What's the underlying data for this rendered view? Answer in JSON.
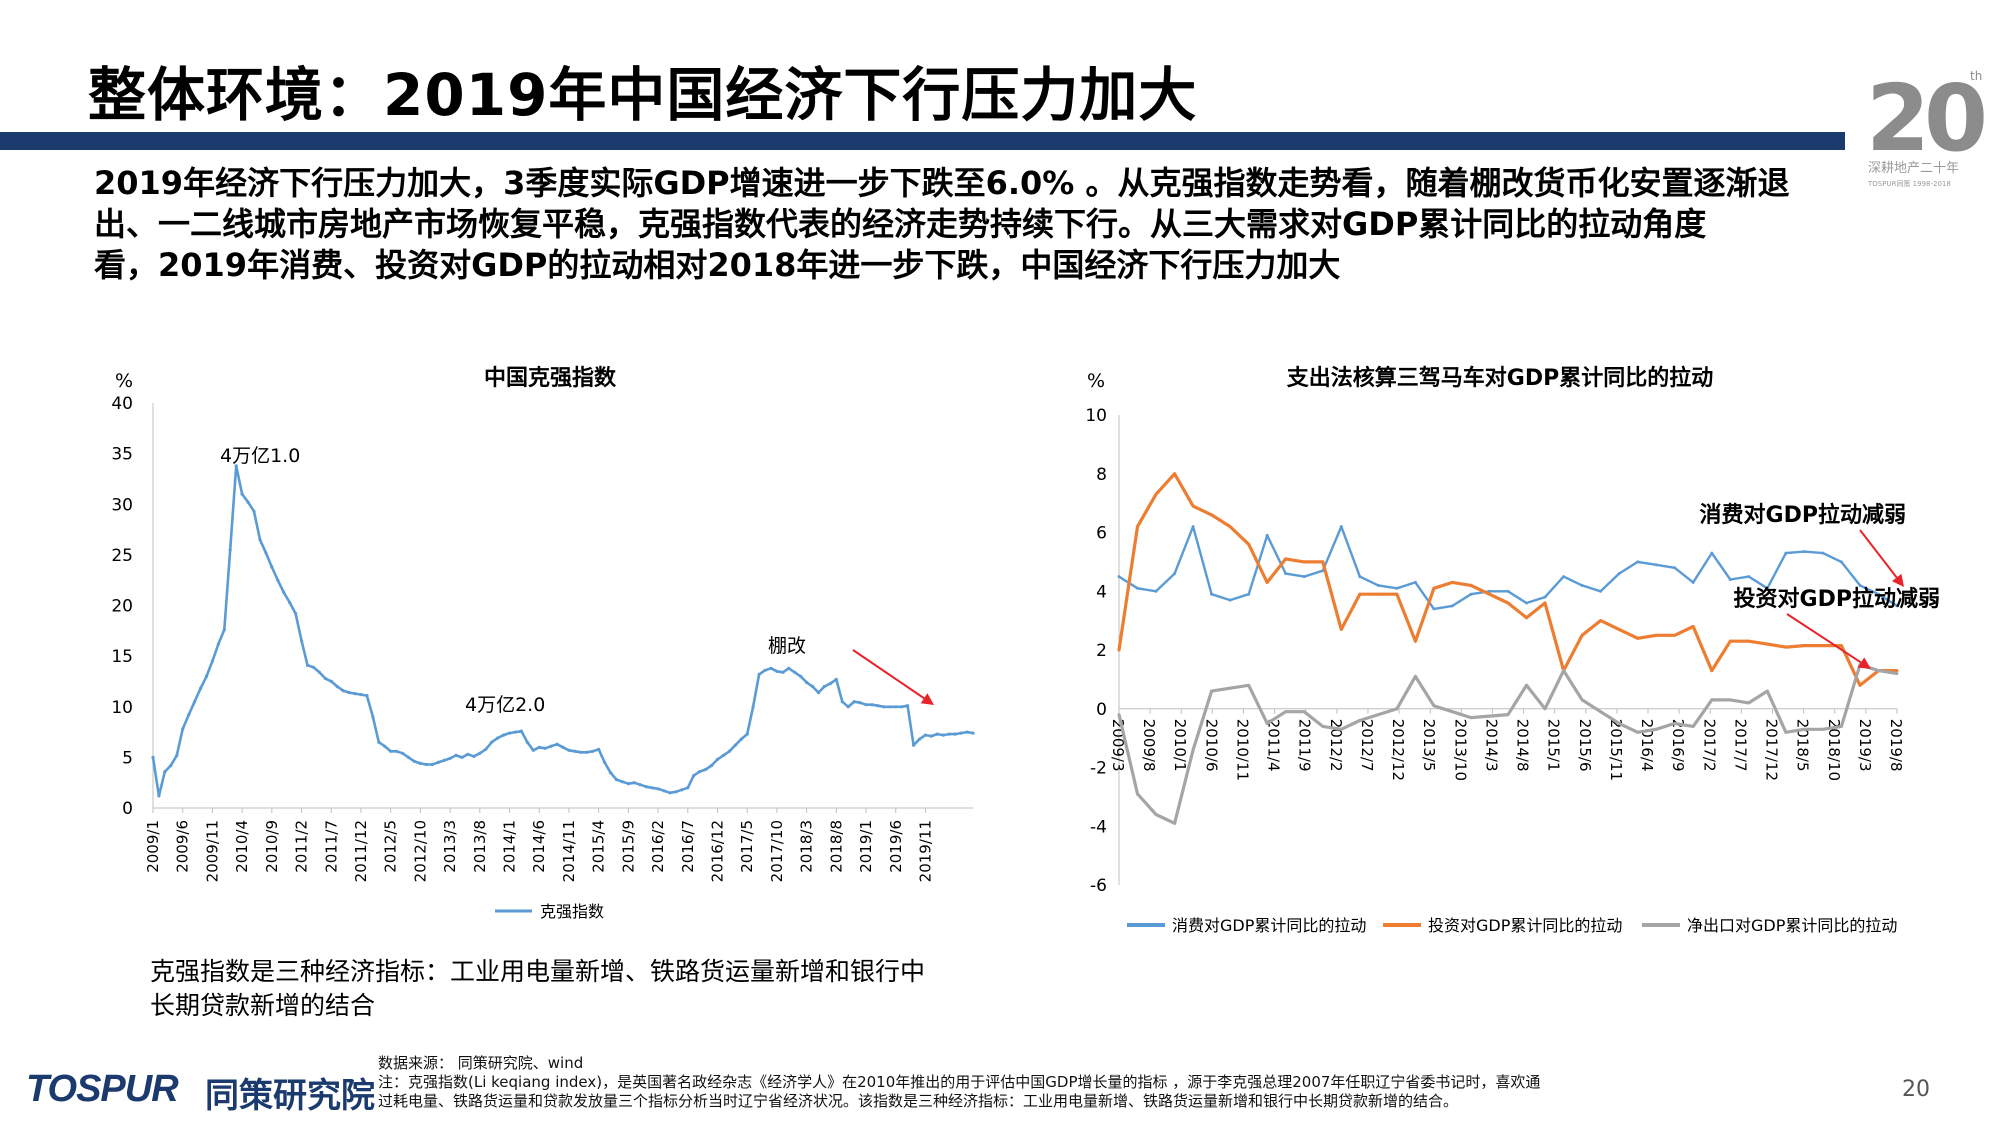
{
  "title": "整体环境：2019年中国经济下行压力加大",
  "logo": {
    "big": "20",
    "sup": "th",
    "caption": "深耕地产二十年",
    "tagline": "TOSPUR同策 1998-2018"
  },
  "summary_lines": [
    "2019年经济下行压力加大，3季度实际GDP增速进一步下跌至6.0% 。从克强指数走势看，随着棚改货币化安置逐渐退",
    "出、一二线城市房地产市场恢复平稳，克强指数代表的经济走势持续下行。从三大需求对GDP累计同比的拉动角度",
    "看，2019年消费、投资对GDP的拉动相对2018年进一步下跌，中国经济下行压力加大"
  ],
  "note_lines": [
    "克强指数是三种经济指标：工业用电量新增、铁路货运量新增和银行中",
    "长期贷款新增的结合"
  ],
  "source_lines": [
    "数据来源： 同策研究院、wind",
    "注：克强指数(Li keqiang index)，是英国著名政经杂志《经济学人》在2010年推出的用于评估中国GDP增长量的指标 ，源于李克强总理2007年任职辽宁省委书记时，喜欢通",
    "过耗电量、铁路货运量和贷款发放量三个指标分析当时辽宁省经济状况。该指数是三种经济指标：工业用电量新增、铁路货运量新增和银行中长期贷款新增的结合。"
  ],
  "brand": {
    "en": "TOSPUR",
    "cn": "同策研究院"
  },
  "page_number": "20",
  "colors": {
    "title_bar": "#1b3a6e",
    "blue": "#5b9bd5",
    "orange": "#ed7d31",
    "gray": "#a5a5a5",
    "arrow": "#e8232a",
    "brand": "#1b3a6e"
  },
  "chart_data": [
    {
      "type": "line",
      "title": "中国克强指数",
      "ylabel": "%",
      "ylim": [
        0,
        40
      ],
      "yticks": [
        0,
        5,
        10,
        15,
        20,
        25,
        30,
        35,
        40
      ],
      "x_tick_labels": [
        "2009/1",
        "2009/6",
        "2009/11",
        "2010/4",
        "2010/9",
        "2011/2",
        "2011/7",
        "2011/12",
        "2012/5",
        "2012/10",
        "2013/3",
        "2013/8",
        "2014/1",
        "2014/6",
        "2014/11",
        "2015/4",
        "2015/9",
        "2016/2",
        "2016/7",
        "2016/12",
        "2017/5",
        "2017/10",
        "2018/3",
        "2018/8",
        "2019/1",
        "2019/6",
        "2019/11"
      ],
      "x_start": "2009/1",
      "x_end": "2019/12",
      "annotations": [
        "4万亿1.0",
        "4万亿2.0",
        "棚改"
      ],
      "legend": "bottom",
      "series": [
        {
          "name": "克强指数",
          "values": [
            5.0,
            1.2,
            3.6,
            4.2,
            5.2,
            7.8,
            9.2,
            10.5,
            11.8,
            13.0,
            14.5,
            16.2,
            17.6,
            25.5,
            33.8,
            31.0,
            30.2,
            29.3,
            26.5,
            25.2,
            23.8,
            22.5,
            21.3,
            20.3,
            19.2,
            16.5,
            14.1,
            13.9,
            13.4,
            12.8,
            12.5,
            12.0,
            11.6,
            11.4,
            11.3,
            11.2,
            11.1,
            9.0,
            6.5,
            6.1,
            5.6,
            5.6,
            5.4,
            5.0,
            4.6,
            4.4,
            4.3,
            4.3,
            4.5,
            4.7,
            4.9,
            5.2,
            5.0,
            5.3,
            5.1,
            5.4,
            5.8,
            6.5,
            6.9,
            7.2,
            7.4,
            7.5,
            7.6,
            6.5,
            5.7,
            6.0,
            5.9,
            6.1,
            6.3,
            6.0,
            5.7,
            5.6,
            5.5,
            5.5,
            5.6,
            5.8,
            4.5,
            3.5,
            2.8,
            2.6,
            2.4,
            2.5,
            2.3,
            2.1,
            2.0,
            1.9,
            1.7,
            1.5,
            1.6,
            1.8,
            2.0,
            3.2,
            3.6,
            3.8,
            4.2,
            4.8,
            5.2,
            5.6,
            6.2,
            6.8,
            7.3,
            10.0,
            13.2,
            13.6,
            13.8,
            13.5,
            13.4,
            13.8,
            13.4,
            13.0,
            12.4,
            12.0,
            11.4,
            12.0,
            12.3,
            12.7,
            10.5,
            10.0,
            10.5,
            10.4,
            10.2,
            10.2,
            10.1,
            10.0,
            10.0,
            10.0,
            10.0,
            10.1,
            6.2,
            6.8,
            7.2,
            7.1,
            7.3,
            7.2,
            7.3,
            7.3,
            7.4,
            7.5,
            7.4
          ]
        }
      ]
    },
    {
      "type": "line",
      "title": "支出法核算三驾马车对GDP累计同比的拉动",
      "ylabel": "%",
      "ylim": [
        -6,
        10
      ],
      "yticks": [
        -6,
        -4,
        -2,
        0,
        2,
        4,
        6,
        8,
        10
      ],
      "x": [
        "2009/3",
        "2009/6",
        "2009/9",
        "2009/12",
        "2010/3",
        "2010/6",
        "2010/9",
        "2010/12",
        "2011/3",
        "2011/6",
        "2011/9",
        "2011/12",
        "2012/3",
        "2012/6",
        "2012/9",
        "2012/12",
        "2013/3",
        "2013/6",
        "2013/9",
        "2013/12",
        "2014/3",
        "2014/6",
        "2014/9",
        "2014/12",
        "2015/3",
        "2015/6",
        "2015/9",
        "2015/12",
        "2016/3",
        "2016/6",
        "2016/9",
        "2016/12",
        "2017/3",
        "2017/6",
        "2017/9",
        "2017/12",
        "2018/3",
        "2018/6",
        "2018/9",
        "2018/12",
        "2019/3",
        "2019/6",
        "2019/9"
      ],
      "x_tick_labels": [
        "2009/3",
        "2009/8",
        "2010/1",
        "2010/6",
        "2010/11",
        "2011/4",
        "2011/9",
        "2012/2",
        "2012/7",
        "2012/12",
        "2013/5",
        "2013/10",
        "2014/3",
        "2014/8",
        "2015/1",
        "2015/6",
        "2015/11",
        "2016/4",
        "2016/9",
        "2017/2",
        "2017/7",
        "2017/12",
        "2018/5",
        "2018/10",
        "2019/3",
        "2019/8"
      ],
      "annotations": [
        "消费对GDP拉动减弱",
        "投资对GDP拉动减弱"
      ],
      "legend": "bottom",
      "series": [
        {
          "name": "消费对GDP累计同比的拉动",
          "color": "#5b9bd5",
          "values": [
            4.5,
            4.1,
            4.0,
            4.6,
            6.2,
            3.9,
            3.7,
            3.9,
            5.9,
            4.6,
            4.5,
            4.7,
            6.2,
            4.5,
            4.2,
            4.1,
            4.3,
            3.4,
            3.5,
            3.9,
            4.0,
            4.0,
            3.6,
            3.8,
            4.5,
            4.2,
            4.0,
            4.6,
            5.0,
            4.9,
            4.8,
            4.3,
            5.3,
            4.4,
            4.5,
            4.1,
            5.3,
            5.35,
            5.3,
            5.0,
            4.2,
            3.9,
            3.5
          ]
        },
        {
          "name": "投资对GDP累计同比的拉动",
          "color": "#ed7d31",
          "values": [
            2.0,
            6.2,
            7.3,
            8.0,
            6.9,
            6.6,
            6.2,
            5.6,
            4.3,
            5.1,
            5.0,
            5.0,
            2.7,
            3.9,
            3.9,
            3.9,
            2.3,
            4.1,
            4.3,
            4.2,
            3.9,
            3.6,
            3.1,
            3.6,
            1.3,
            2.5,
            3.0,
            2.7,
            2.4,
            2.5,
            2.5,
            2.8,
            1.3,
            2.3,
            2.3,
            2.2,
            2.1,
            2.15,
            2.15,
            2.15,
            0.8,
            1.3,
            1.3
          ]
        },
        {
          "name": "净出口对GDP累计同比的拉动",
          "color": "#a5a5a5",
          "values": [
            -0.2,
            -2.9,
            -3.6,
            -3.9,
            -1.4,
            0.6,
            0.7,
            0.8,
            -0.5,
            -0.1,
            -0.1,
            -0.6,
            -0.7,
            -0.4,
            -0.2,
            0.0,
            1.1,
            0.1,
            -0.1,
            -0.3,
            -0.25,
            -0.2,
            0.8,
            0.0,
            1.3,
            0.3,
            -0.1,
            -0.5,
            -0.8,
            -0.7,
            -0.5,
            -0.6,
            0.3,
            0.3,
            0.2,
            0.6,
            -0.8,
            -0.7,
            -0.7,
            -0.6,
            1.5,
            1.3,
            1.2
          ]
        }
      ]
    }
  ]
}
